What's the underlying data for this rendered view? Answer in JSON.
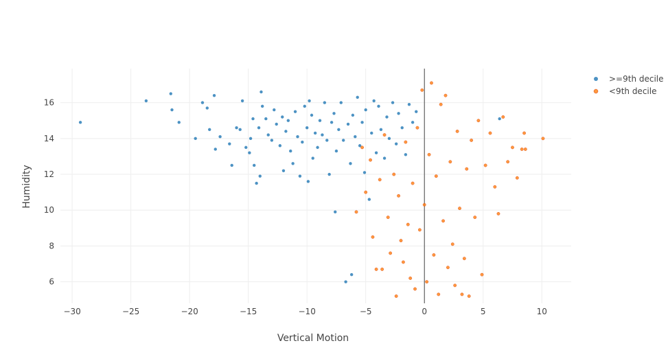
{
  "chart_data": {
    "type": "scatter",
    "xlabel": "Vertical Motion",
    "ylabel": "Humidity",
    "xlim": [
      -31,
      12.5
    ],
    "ylim": [
      4.8,
      17.9
    ],
    "x_ticks": [
      -30,
      -25,
      -20,
      -15,
      -10,
      -5,
      0,
      5,
      10
    ],
    "x_tick_labels": [
      "−30",
      "−25",
      "−20",
      "−15",
      "−10",
      "−5",
      "0",
      "5",
      "10"
    ],
    "y_ticks": [
      6,
      8,
      10,
      12,
      14,
      16
    ],
    "y_tick_labels": [
      "6",
      "8",
      "10",
      "12",
      "14",
      "16"
    ],
    "grid": true,
    "zero_line_x": 0,
    "legend_position": "top-right",
    "series": [
      {
        "name": ">=9th decile",
        "color": "#1f77b4",
        "points": [
          [
            -29.3,
            14.9
          ],
          [
            -23.7,
            16.1
          ],
          [
            -21.6,
            16.5
          ],
          [
            -21.5,
            15.6
          ],
          [
            -20.9,
            14.9
          ],
          [
            -19.5,
            14.0
          ],
          [
            -18.9,
            16.0
          ],
          [
            -18.5,
            15.7
          ],
          [
            -18.3,
            14.5
          ],
          [
            -17.9,
            16.4
          ],
          [
            -17.8,
            13.4
          ],
          [
            -17.4,
            14.1
          ],
          [
            -16.6,
            13.7
          ],
          [
            -16.4,
            12.5
          ],
          [
            -16.0,
            14.6
          ],
          [
            -15.7,
            14.5
          ],
          [
            -15.5,
            16.1
          ],
          [
            -15.2,
            13.5
          ],
          [
            -14.9,
            13.2
          ],
          [
            -14.8,
            14.0
          ],
          [
            -14.6,
            15.1
          ],
          [
            -14.5,
            12.5
          ],
          [
            -14.3,
            11.5
          ],
          [
            -14.1,
            14.6
          ],
          [
            -14.0,
            11.9
          ],
          [
            -13.9,
            16.6
          ],
          [
            -13.8,
            15.8
          ],
          [
            -13.5,
            15.1
          ],
          [
            -13.3,
            14.2
          ],
          [
            -13.0,
            13.9
          ],
          [
            -12.8,
            15.6
          ],
          [
            -12.6,
            14.8
          ],
          [
            -12.3,
            13.6
          ],
          [
            -12.1,
            15.2
          ],
          [
            -12.0,
            12.2
          ],
          [
            -11.8,
            14.4
          ],
          [
            -11.6,
            15.0
          ],
          [
            -11.4,
            13.3
          ],
          [
            -11.2,
            12.6
          ],
          [
            -11.0,
            15.5
          ],
          [
            -10.8,
            14.1
          ],
          [
            -10.6,
            11.9
          ],
          [
            -10.4,
            13.8
          ],
          [
            -10.2,
            15.8
          ],
          [
            -10.0,
            14.6
          ],
          [
            -9.9,
            11.6
          ],
          [
            -9.8,
            16.1
          ],
          [
            -9.6,
            15.3
          ],
          [
            -9.5,
            12.9
          ],
          [
            -9.3,
            14.3
          ],
          [
            -9.1,
            13.5
          ],
          [
            -8.9,
            15.0
          ],
          [
            -8.7,
            14.2
          ],
          [
            -8.5,
            16.0
          ],
          [
            -8.3,
            13.9
          ],
          [
            -8.1,
            12.0
          ],
          [
            -7.9,
            14.9
          ],
          [
            -7.7,
            15.4
          ],
          [
            -7.6,
            9.9
          ],
          [
            -7.5,
            13.3
          ],
          [
            -7.3,
            14.5
          ],
          [
            -7.1,
            16.0
          ],
          [
            -6.9,
            13.9
          ],
          [
            -6.7,
            6.0
          ],
          [
            -6.5,
            14.8
          ],
          [
            -6.3,
            12.6
          ],
          [
            -6.1,
            15.3
          ],
          [
            -5.9,
            14.1
          ],
          [
            -5.7,
            16.3
          ],
          [
            -5.5,
            13.6
          ],
          [
            -5.3,
            14.9
          ],
          [
            -5.1,
            12.1
          ],
          [
            -5.0,
            15.6
          ],
          [
            -4.7,
            10.6
          ],
          [
            -4.5,
            14.3
          ],
          [
            -4.3,
            16.1
          ],
          [
            -4.1,
            13.2
          ],
          [
            -3.9,
            15.8
          ],
          [
            -3.7,
            14.5
          ],
          [
            -3.4,
            12.9
          ],
          [
            -3.2,
            15.2
          ],
          [
            -3.0,
            14.0
          ],
          [
            -2.7,
            16.0
          ],
          [
            -2.4,
            13.7
          ],
          [
            -2.2,
            15.4
          ],
          [
            -1.9,
            14.6
          ],
          [
            -1.6,
            13.1
          ],
          [
            -1.3,
            15.9
          ],
          [
            -1.0,
            14.9
          ],
          [
            -0.7,
            15.5
          ],
          [
            -6.2,
            6.4
          ],
          [
            6.4,
            15.1
          ]
        ]
      },
      {
        "name": "<9th decile",
        "color": "#ff7f0e",
        "points": [
          [
            -5.8,
            9.9
          ],
          [
            -5.3,
            13.5
          ],
          [
            -5.0,
            11.0
          ],
          [
            -4.6,
            12.8
          ],
          [
            -4.4,
            8.5
          ],
          [
            -4.1,
            6.7
          ],
          [
            -3.8,
            11.7
          ],
          [
            -3.6,
            6.7
          ],
          [
            -3.4,
            14.2
          ],
          [
            -3.1,
            9.6
          ],
          [
            -2.9,
            7.6
          ],
          [
            -2.6,
            12.0
          ],
          [
            -2.4,
            5.2
          ],
          [
            -2.2,
            10.8
          ],
          [
            -2.0,
            8.3
          ],
          [
            -1.8,
            7.1
          ],
          [
            -1.6,
            13.8
          ],
          [
            -1.4,
            9.2
          ],
          [
            -1.2,
            6.2
          ],
          [
            -1.0,
            11.5
          ],
          [
            -0.8,
            5.6
          ],
          [
            -0.6,
            14.6
          ],
          [
            -0.4,
            8.9
          ],
          [
            -0.2,
            16.7
          ],
          [
            0.0,
            10.3
          ],
          [
            0.2,
            6.0
          ],
          [
            0.4,
            13.1
          ],
          [
            0.6,
            17.1
          ],
          [
            0.8,
            7.5
          ],
          [
            1.0,
            11.9
          ],
          [
            1.2,
            5.3
          ],
          [
            1.4,
            15.9
          ],
          [
            1.6,
            9.4
          ],
          [
            1.8,
            16.4
          ],
          [
            2.0,
            6.8
          ],
          [
            2.2,
            12.7
          ],
          [
            2.4,
            8.1
          ],
          [
            2.6,
            5.8
          ],
          [
            2.8,
            14.4
          ],
          [
            3.0,
            10.1
          ],
          [
            3.2,
            5.3
          ],
          [
            3.4,
            7.3
          ],
          [
            3.6,
            12.3
          ],
          [
            3.8,
            5.2
          ],
          [
            4.0,
            13.9
          ],
          [
            4.3,
            9.6
          ],
          [
            4.6,
            15.0
          ],
          [
            4.9,
            6.4
          ],
          [
            5.2,
            12.5
          ],
          [
            5.6,
            14.3
          ],
          [
            6.0,
            11.3
          ],
          [
            6.3,
            9.8
          ],
          [
            6.7,
            15.2
          ],
          [
            7.1,
            12.7
          ],
          [
            7.5,
            13.5
          ],
          [
            7.9,
            11.8
          ],
          [
            8.3,
            13.4
          ],
          [
            8.6,
            13.4
          ],
          [
            8.5,
            14.3
          ],
          [
            10.1,
            14.0
          ]
        ]
      }
    ]
  }
}
